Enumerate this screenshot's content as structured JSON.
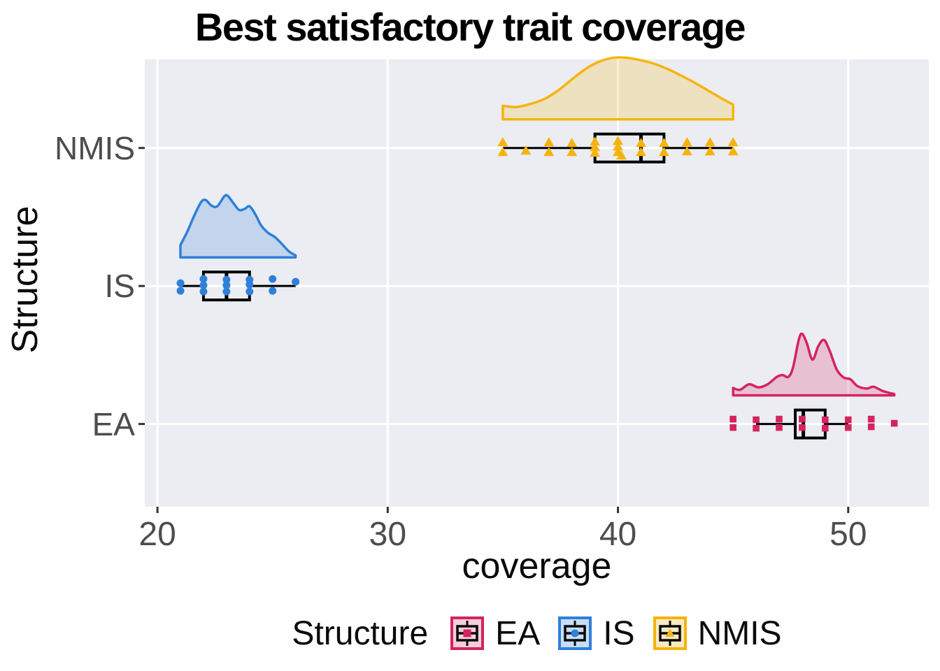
{
  "title": "Best satisfactory trait coverage",
  "axes": {
    "x": {
      "label": "coverage"
    },
    "y": {
      "label": "Structure"
    }
  },
  "legend": {
    "title": "Structure",
    "items": [
      {
        "label": "EA",
        "color": "#D4245E",
        "fill": "#F4CEDC",
        "marker": "square"
      },
      {
        "label": "IS",
        "color": "#2E80D9",
        "fill": "#C9DDF4",
        "marker": "circle"
      },
      {
        "label": "NMIS",
        "color": "#F5B40D",
        "fill": "#FAE9C2",
        "marker": "triangle"
      }
    ]
  },
  "colors": {
    "panel_background": "#ECEDF2",
    "gridline": "#FFFFFF",
    "axis_text": "#4D4D4D",
    "tick_mark": "#333333",
    "box_stroke": "#000000"
  },
  "chart_data": {
    "type": "raincloud",
    "title": "Best satisfactory trait coverage",
    "xlabel": "coverage",
    "ylabel": "Structure",
    "xlim": [
      19.45,
      53.5
    ],
    "xticks": [
      20,
      30,
      40,
      50
    ],
    "xtick_labels": [
      "20",
      "30",
      "40",
      "50"
    ],
    "categories": [
      "NMIS",
      "IS",
      "EA"
    ],
    "grid": true,
    "legend_position": "bottom",
    "series": [
      {
        "name": "NMIS",
        "color": "#F5B40D",
        "marker": "triangle",
        "box": {
          "lo": 35,
          "q1": 39,
          "med": 41,
          "q3": 42,
          "hi": 45
        },
        "points": [
          [
            35,
            -8
          ],
          [
            35,
            6
          ],
          [
            36,
            4
          ],
          [
            37,
            -8
          ],
          [
            37,
            6
          ],
          [
            38,
            -7
          ],
          [
            38,
            6
          ],
          [
            39,
            -9
          ],
          [
            39,
            -1
          ],
          [
            39,
            7
          ],
          [
            40,
            -10
          ],
          [
            40,
            -2
          ],
          [
            40,
            6
          ],
          [
            40.15,
            11
          ],
          [
            41,
            -7
          ],
          [
            41,
            6
          ],
          [
            42,
            -7
          ],
          [
            42,
            6
          ],
          [
            43,
            -8
          ],
          [
            43,
            5
          ],
          [
            44,
            -8
          ],
          [
            44,
            5
          ],
          [
            45,
            -8
          ],
          [
            45,
            5
          ]
        ],
        "density": [
          [
            35,
            0.22
          ],
          [
            35.6,
            0.2
          ],
          [
            36.2,
            0.25
          ],
          [
            36.8,
            0.33
          ],
          [
            37.4,
            0.47
          ],
          [
            38,
            0.65
          ],
          [
            38.6,
            0.82
          ],
          [
            39.2,
            0.94
          ],
          [
            39.8,
            1.0
          ],
          [
            40.4,
            1.0
          ],
          [
            41,
            0.96
          ],
          [
            41.6,
            0.9
          ],
          [
            42.2,
            0.81
          ],
          [
            42.8,
            0.7
          ],
          [
            43.4,
            0.58
          ],
          [
            44,
            0.45
          ],
          [
            44.5,
            0.34
          ],
          [
            45,
            0.24
          ]
        ]
      },
      {
        "name": "IS",
        "color": "#2E80D9",
        "marker": "circle",
        "box": {
          "lo": 21,
          "q1": 22,
          "med": 23,
          "q3": 24,
          "hi": 26
        },
        "points": [
          [
            21,
            -4
          ],
          [
            21,
            7
          ],
          [
            22,
            -10
          ],
          [
            22,
            -1
          ],
          [
            22,
            8
          ],
          [
            23,
            -9
          ],
          [
            23,
            -1
          ],
          [
            23,
            8
          ],
          [
            24,
            -9
          ],
          [
            24,
            -2
          ],
          [
            24,
            8
          ],
          [
            25,
            -10
          ],
          [
            25,
            7
          ],
          [
            26,
            -6
          ]
        ],
        "density": [
          [
            21,
            0.2
          ],
          [
            21.3,
            0.42
          ],
          [
            21.6,
            0.68
          ],
          [
            21.9,
            0.9
          ],
          [
            22.1,
            0.93
          ],
          [
            22.35,
            0.84
          ],
          [
            22.6,
            0.83
          ],
          [
            22.9,
            0.99
          ],
          [
            23.05,
            1.0
          ],
          [
            23.3,
            0.88
          ],
          [
            23.55,
            0.77
          ],
          [
            23.8,
            0.79
          ],
          [
            24.0,
            0.83
          ],
          [
            24.25,
            0.7
          ],
          [
            24.5,
            0.52
          ],
          [
            24.8,
            0.4
          ],
          [
            25.1,
            0.33
          ],
          [
            25.4,
            0.22
          ],
          [
            25.7,
            0.1
          ],
          [
            26,
            0.03
          ]
        ]
      },
      {
        "name": "EA",
        "color": "#D4245E",
        "marker": "square",
        "box": {
          "lo": 46,
          "q1": 47.7,
          "med": 48.05,
          "q3": 49,
          "hi": 50
        },
        "points": [
          [
            45,
            -7
          ],
          [
            45,
            5
          ],
          [
            46,
            -6
          ],
          [
            46,
            6
          ],
          [
            47,
            -7
          ],
          [
            47,
            5
          ],
          [
            48,
            -7
          ],
          [
            48,
            5
          ],
          [
            49,
            -6
          ],
          [
            49,
            6
          ],
          [
            50,
            -6
          ],
          [
            50,
            5
          ],
          [
            51,
            -7
          ],
          [
            51,
            4
          ],
          [
            52,
            -1
          ]
        ],
        "density": [
          [
            45,
            0.12
          ],
          [
            45.3,
            0.09
          ],
          [
            45.7,
            0.18
          ],
          [
            46.1,
            0.13
          ],
          [
            46.5,
            0.18
          ],
          [
            46.9,
            0.3
          ],
          [
            47.15,
            0.33
          ],
          [
            47.4,
            0.3
          ],
          [
            47.6,
            0.45
          ],
          [
            47.85,
            0.9
          ],
          [
            48.0,
            1.0
          ],
          [
            48.2,
            0.85
          ],
          [
            48.45,
            0.58
          ],
          [
            48.7,
            0.8
          ],
          [
            48.95,
            0.9
          ],
          [
            49.2,
            0.72
          ],
          [
            49.5,
            0.42
          ],
          [
            49.8,
            0.29
          ],
          [
            50.1,
            0.26
          ],
          [
            50.4,
            0.15
          ],
          [
            50.8,
            0.11
          ],
          [
            51.1,
            0.14
          ],
          [
            51.5,
            0.07
          ],
          [
            52.0,
            0.02
          ]
        ]
      }
    ]
  }
}
